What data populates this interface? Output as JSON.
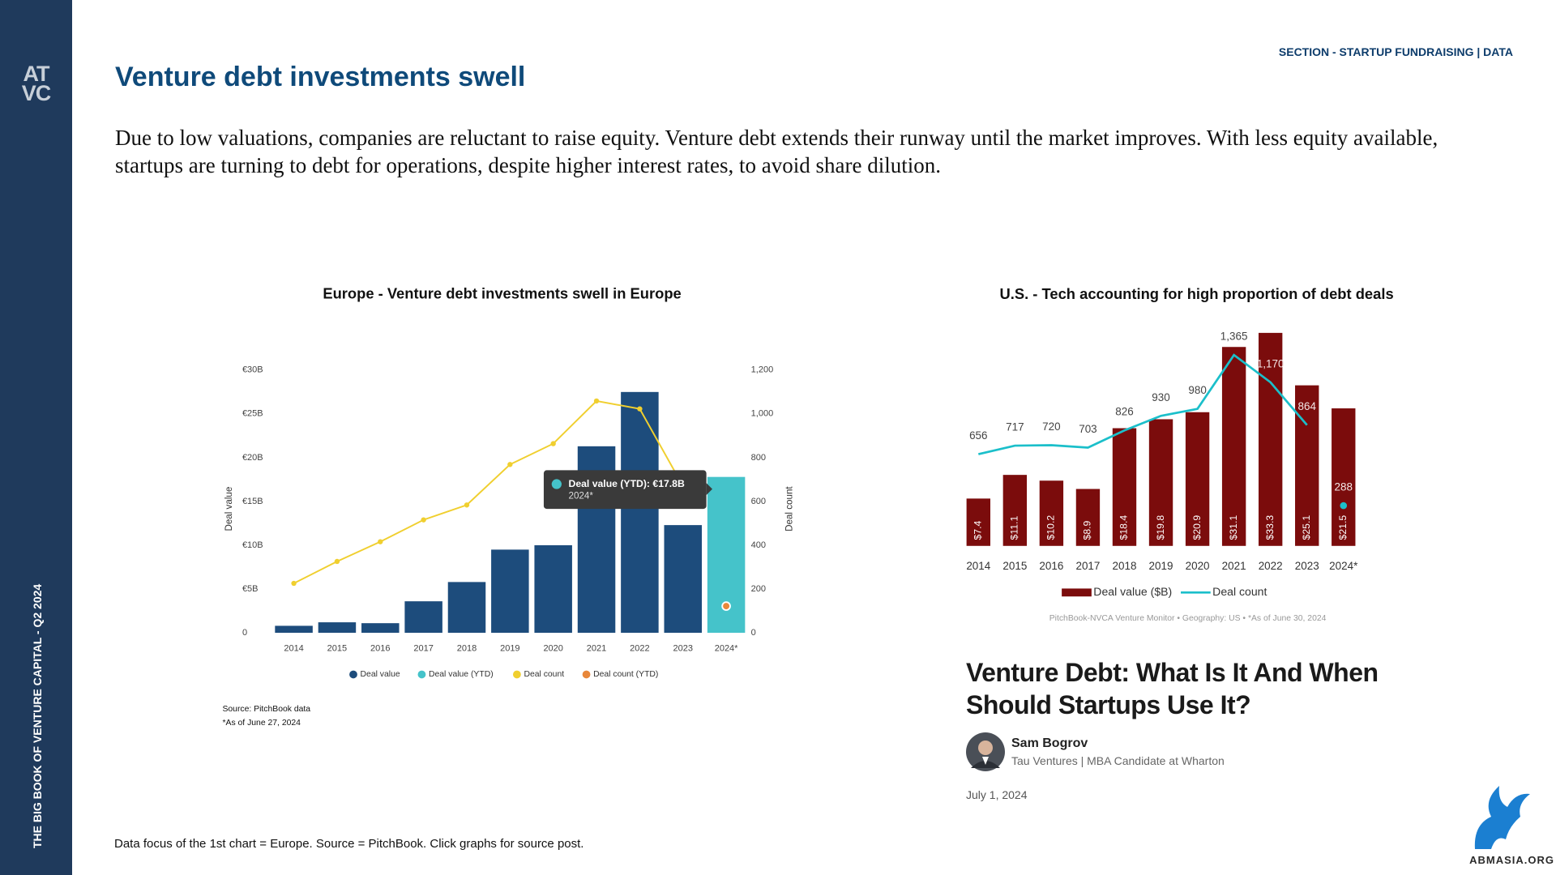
{
  "sidebar": {
    "logo": [
      "AT",
      "VC"
    ],
    "book_title": "THE BIG BOOK OF VENTURE CAPITAL - Q2 2024"
  },
  "header": {
    "section": "SECTION - STARTUP FUNDRAISING | DATA",
    "title": "Venture debt investments swell"
  },
  "intro": "Due to low valuations, companies are reluctant to raise equity. Venture debt extends their runway until the market improves. With less equity available, startups are turning to debt for operations, despite higher interest rates, to avoid share dilution.",
  "chart_data": [
    {
      "type": "bar",
      "title": "Europe - Venture debt investments swell in Europe",
      "categories": [
        "2014",
        "2015",
        "2016",
        "2017",
        "2018",
        "2019",
        "2020",
        "2021",
        "2022",
        "2023",
        "2024*"
      ],
      "series": [
        {
          "name": "Deal value",
          "type": "bar",
          "color": "#1d4c7c",
          "values": [
            0.8,
            1.2,
            1.1,
            3.6,
            5.8,
            9.5,
            10.0,
            21.3,
            27.5,
            12.3,
            null
          ]
        },
        {
          "name": "Deal value (YTD)",
          "type": "bar",
          "color": "#45c3ca",
          "values": [
            null,
            null,
            null,
            null,
            null,
            null,
            null,
            null,
            null,
            null,
            17.8
          ]
        },
        {
          "name": "Deal count",
          "type": "line",
          "axis": "y2",
          "color": "#f0cf2f",
          "values": [
            226,
            326,
            416,
            516,
            584,
            769,
            864,
            1059,
            1023,
            670,
            null
          ]
        },
        {
          "name": "Deal count (YTD)",
          "type": "line",
          "axis": "y2",
          "color": "#e8873a",
          "values": [
            null,
            null,
            null,
            null,
            null,
            null,
            null,
            null,
            null,
            null,
            122
          ]
        }
      ],
      "ylabel": "Deal value",
      "y2label": "Deal count",
      "ylim": [
        0,
        30
      ],
      "yticks": [
        0,
        {
          "value": 5,
          "label": "€5B"
        },
        {
          "value": 10,
          "label": "€10B"
        },
        {
          "value": 15,
          "label": "€15B"
        },
        {
          "value": 20,
          "label": "€20B"
        },
        {
          "value": 25,
          "label": "€25B"
        },
        {
          "value": 30,
          "label": "€30B"
        }
      ],
      "y2lim": [
        0,
        1200
      ],
      "y2ticks": [
        0,
        200,
        400,
        600,
        800,
        {
          "value": 1000,
          "label": "1,000"
        },
        {
          "value": 1200,
          "label": "1,200"
        }
      ],
      "annotations": [
        {
          "text": "Deal value (YTD): €17.8B",
          "subtext": "2024*"
        }
      ],
      "legend": "bottom",
      "source": [
        "Source: PitchBook data",
        "*As of June 27, 2024"
      ]
    },
    {
      "type": "bar",
      "title": "U.S. - Tech accounting for high proportion of debt deals",
      "categories": [
        "2014",
        "2015",
        "2016",
        "2017",
        "2018",
        "2019",
        "2020",
        "2021",
        "2022",
        "2023",
        "2024*"
      ],
      "series": [
        {
          "name": "Deal value ($B)",
          "type": "bar",
          "color": "#7b0c0c",
          "values": [
            7.4,
            11.1,
            10.2,
            8.9,
            18.4,
            19.8,
            20.9,
            31.1,
            33.3,
            25.1,
            21.5
          ],
          "value_labels": [
            "$7.4",
            "$11.1",
            "$10.2",
            "$8.9",
            "$18.4",
            "$19.8",
            "$20.9",
            "$31.1",
            "$33.3",
            "$25.1",
            "$21.5"
          ]
        },
        {
          "name": "Deal count",
          "type": "line",
          "axis": "y2",
          "color": "#1bbfca",
          "values": [
            656,
            717,
            720,
            703,
            826,
            930,
            980,
            1365,
            1170,
            864,
            288
          ],
          "value_labels": [
            "656",
            "717",
            "720",
            "703",
            "826",
            "930",
            "980",
            "1,365",
            "1,170",
            "864",
            "288"
          ]
        }
      ],
      "legend": "bottom",
      "source": "PitchBook-NVCA Venture Monitor  •  Geography: US  •  *As of June 30, 2024"
    }
  ],
  "article": {
    "title": "Venture Debt: What Is It And When Should Startups Use It?",
    "author": "Sam Bogrov",
    "role": "Tau Ventures | MBA Candidate at Wharton",
    "date": "July 1, 2024"
  },
  "footnote": "Data focus of the 1st chart = Europe. Source = PitchBook. Click graphs for source post.",
  "watermark": "ABMASIA.ORG"
}
